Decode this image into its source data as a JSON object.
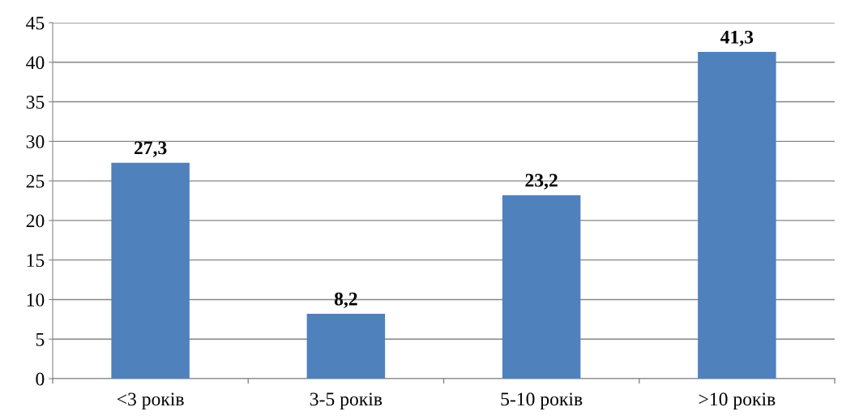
{
  "chart_data": {
    "type": "bar",
    "categories": [
      "<3 років",
      "3-5 років",
      "5-10 років",
      ">10 років"
    ],
    "values": [
      27.3,
      8.2,
      23.2,
      41.3
    ],
    "color": "#4f81bd",
    "value_labels": [
      "27,3",
      "8,2",
      "23,2",
      "41,3"
    ],
    "ylim": [
      0,
      45
    ],
    "yticks": [
      0,
      5,
      10,
      15,
      20,
      25,
      30,
      35,
      40,
      45
    ],
    "grid": "y",
    "legend": false
  }
}
